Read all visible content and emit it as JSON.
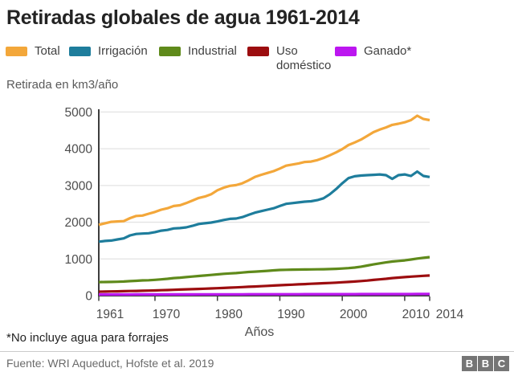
{
  "title": "Retiradas globales de agua 1961-2014",
  "footnote": "*No incluye agua para forrajes",
  "source": "Fuente: WRI Aqueduct, Hofste et al. 2019",
  "bbc_logo_letters": [
    "B",
    "B",
    "C"
  ],
  "colors": {
    "title_text": "#232323",
    "legend_text": "#404040",
    "axis_line": "#3d3d3d",
    "tick_label": "#4d4d4d",
    "gridline": "#e3e3e3",
    "subtitle_text": "#5a5a5a",
    "source_text": "#6a6a6a",
    "divider": "#cbcbcb",
    "bbc_box": "#757575"
  },
  "chart_data": {
    "type": "line",
    "title": "Retiradas globales de agua 1961-2014",
    "ylabel": "Retirada en km3/año",
    "xlabel": "Años",
    "ylim": [
      0,
      5000
    ],
    "yticks": [
      0,
      1000,
      2000,
      3000,
      4000,
      5000
    ],
    "xticks": [
      1961,
      1970,
      1980,
      1990,
      2000,
      2010,
      2014
    ],
    "grid": "horizontal",
    "legend_position": "top",
    "x": [
      1961,
      1962,
      1963,
      1964,
      1965,
      1966,
      1967,
      1968,
      1969,
      1970,
      1971,
      1972,
      1973,
      1974,
      1975,
      1976,
      1977,
      1978,
      1979,
      1980,
      1981,
      1982,
      1983,
      1984,
      1985,
      1986,
      1987,
      1988,
      1989,
      1990,
      1991,
      1992,
      1993,
      1994,
      1995,
      1996,
      1997,
      1998,
      1999,
      2000,
      2001,
      2002,
      2003,
      2004,
      2005,
      2006,
      2007,
      2008,
      2009,
      2010,
      2011,
      2012,
      2013,
      2014
    ],
    "series": [
      {
        "name": "Total",
        "color": "#F3A73A",
        "values": [
          1930,
          1970,
          2010,
          2020,
          2030,
          2110,
          2170,
          2180,
          2230,
          2280,
          2340,
          2380,
          2440,
          2460,
          2520,
          2590,
          2660,
          2700,
          2760,
          2870,
          2940,
          2990,
          3010,
          3060,
          3140,
          3230,
          3290,
          3340,
          3390,
          3460,
          3540,
          3570,
          3600,
          3640,
          3650,
          3690,
          3750,
          3820,
          3900,
          3990,
          4100,
          4170,
          4250,
          4350,
          4450,
          4520,
          4580,
          4650,
          4680,
          4720,
          4780,
          4900,
          4810,
          4780
        ]
      },
      {
        "name": "Irrigación",
        "color": "#1E7D9C",
        "values": [
          1470,
          1490,
          1500,
          1530,
          1560,
          1640,
          1680,
          1690,
          1700,
          1730,
          1770,
          1790,
          1830,
          1840,
          1860,
          1900,
          1950,
          1970,
          1990,
          2020,
          2060,
          2090,
          2100,
          2140,
          2200,
          2260,
          2300,
          2340,
          2380,
          2440,
          2500,
          2520,
          2540,
          2560,
          2570,
          2600,
          2650,
          2760,
          2900,
          3060,
          3200,
          3250,
          3270,
          3280,
          3290,
          3300,
          3280,
          3180,
          3280,
          3300,
          3260,
          3380,
          3260,
          3230
        ]
      },
      {
        "name": "Industrial",
        "color": "#5F8A1B",
        "values": [
          370,
          372,
          375,
          378,
          385,
          395,
          405,
          415,
          420,
          430,
          445,
          460,
          480,
          490,
          505,
          520,
          535,
          550,
          565,
          580,
          595,
          605,
          615,
          630,
          645,
          655,
          665,
          675,
          690,
          700,
          705,
          708,
          710,
          712,
          715,
          718,
          720,
          725,
          730,
          740,
          750,
          765,
          790,
          820,
          850,
          880,
          905,
          930,
          945,
          960,
          985,
          1010,
          1030,
          1050
        ]
      },
      {
        "name": "Uso doméstico",
        "color": "#9C0D0F",
        "values": [
          110,
          112,
          115,
          118,
          122,
          126,
          130,
          134,
          138,
          143,
          148,
          154,
          160,
          166,
          172,
          178,
          184,
          190,
          196,
          203,
          210,
          218,
          226,
          234,
          242,
          250,
          258,
          266,
          275,
          285,
          293,
          300,
          308,
          315,
          323,
          330,
          338,
          346,
          355,
          365,
          375,
          385,
          398,
          412,
          428,
          444,
          460,
          478,
          492,
          505,
          518,
          530,
          540,
          550
        ]
      },
      {
        "name": "Ganado*",
        "color": "#BC16F0",
        "values": [
          32,
          32,
          32,
          33,
          33,
          33,
          34,
          34,
          34,
          35,
          35,
          35,
          36,
          36,
          36,
          36,
          37,
          37,
          37,
          37,
          38,
          38,
          38,
          38,
          39,
          39,
          39,
          39,
          40,
          40,
          40,
          40,
          40,
          41,
          41,
          41,
          41,
          42,
          42,
          42,
          42,
          42,
          43,
          43,
          43,
          43,
          43,
          44,
          44,
          44,
          44,
          45,
          45,
          45
        ]
      }
    ]
  }
}
